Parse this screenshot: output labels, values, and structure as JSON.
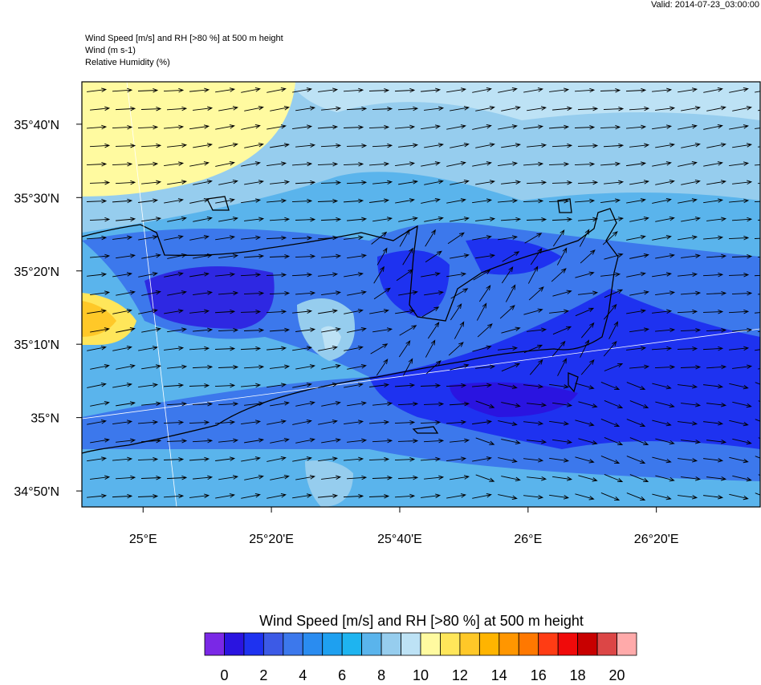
{
  "valid": "Valid: 2014-07-23_03:00:00",
  "header": {
    "title": "Wind Speed [m/s] and RH [>80 %] at 500 m height",
    "line2": "Wind   (m s-1)",
    "line3": "Relative Humidity   (%)"
  },
  "map": {
    "xlim": [
      24.841,
      26.603
    ],
    "ylim": [
      34.797,
      35.763
    ],
    "xticks": [
      {
        "value": 25,
        "label": "25°E"
      },
      {
        "value": 25.3333,
        "label": "25°20'E"
      },
      {
        "value": 25.6667,
        "label": "25°40'E"
      },
      {
        "value": 26,
        "label": "26°E"
      },
      {
        "value": 26.3333,
        "label": "26°20'E"
      }
    ],
    "yticks": [
      {
        "value": 34.8333,
        "label": "34°50'N"
      },
      {
        "value": 35,
        "label": "35°N"
      },
      {
        "value": 35.1667,
        "label": "35°10'N"
      },
      {
        "value": 35.3333,
        "label": "35°20'N"
      },
      {
        "value": 35.5,
        "label": "35°30'N"
      },
      {
        "value": 35.6667,
        "label": "35°40'N"
      }
    ]
  },
  "colorbar": {
    "title": "Wind Speed [m/s] and RH [>80 %] at 500 m height",
    "range": [
      -1,
      21
    ],
    "colors": [
      "#7a28e6",
      "#2a14e0",
      "#1e32f0",
      "#3c5ae6",
      "#3c78ec",
      "#2a8cf0",
      "#1ea0f0",
      "#1eb4f0",
      "#5ab4ec",
      "#96cdee",
      "#bde2f5",
      "#fffaa0",
      "#ffe65a",
      "#ffc828",
      "#ffb400",
      "#ff9600",
      "#ff7800",
      "#ff3c14",
      "#f00a0a",
      "#c80000",
      "#dc4646",
      "#ffaaaa"
    ],
    "ticks": [
      0,
      2,
      4,
      6,
      8,
      10,
      12,
      14,
      16,
      18,
      20
    ]
  }
}
